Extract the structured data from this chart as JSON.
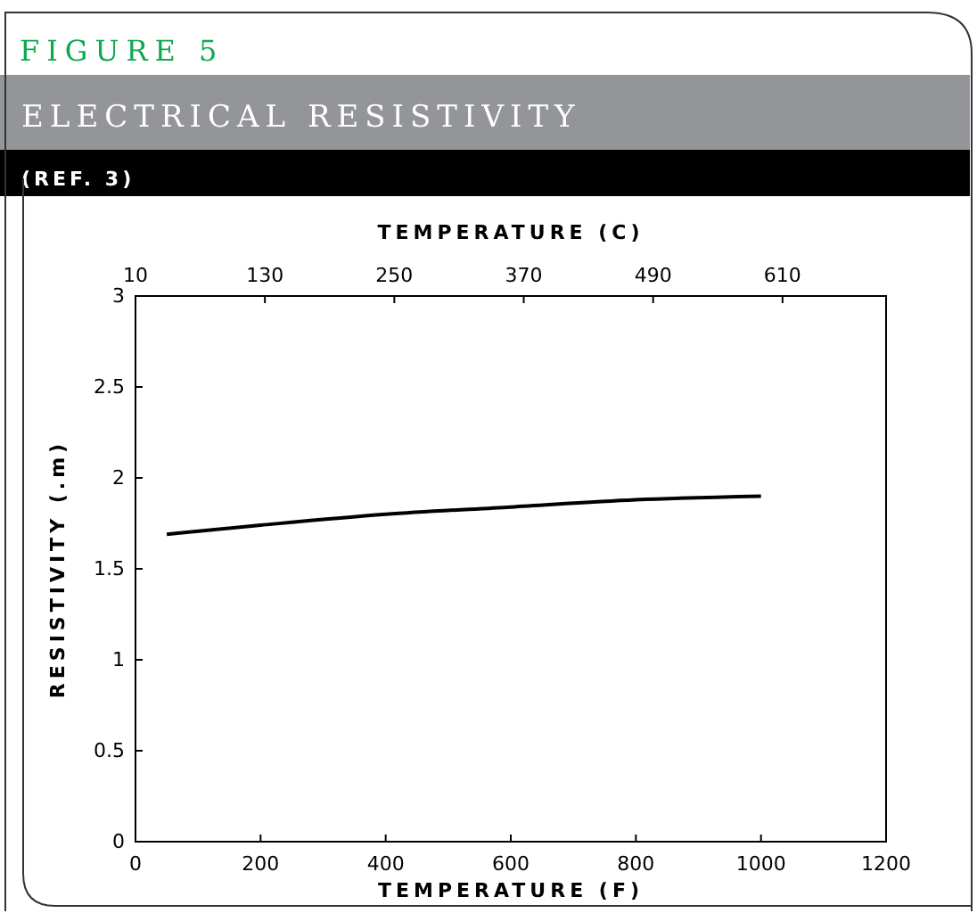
{
  "chart_data": {
    "type": "line",
    "title": "FIGURE 5",
    "subtitle": "ELECTRICAL RESISTIVITY",
    "annotations": [
      "(REF. 3)"
    ],
    "xlabel": "TEMPERATURE (F)",
    "x2label": "TEMPERATURE (C)",
    "ylabel": "RESISTIVITY (.m)",
    "x": [
      50,
      200,
      400,
      600,
      800,
      1000
    ],
    "series": [
      {
        "color": "#000000",
        "values": [
          1.69,
          1.74,
          1.8,
          1.84,
          1.88,
          1.9
        ]
      }
    ],
    "xlim": [
      0,
      1200
    ],
    "xticks": [
      0,
      200,
      400,
      600,
      800,
      1000,
      1200
    ],
    "x2lim": [
      10,
      706
    ],
    "x2ticks": [
      10,
      130,
      250,
      370,
      490,
      610
    ],
    "ylim": [
      0,
      3
    ],
    "yticks": [
      0,
      0.5,
      1,
      1.5,
      2,
      2.5,
      3
    ],
    "grid": false,
    "marker": "none",
    "line_style": "solid"
  }
}
